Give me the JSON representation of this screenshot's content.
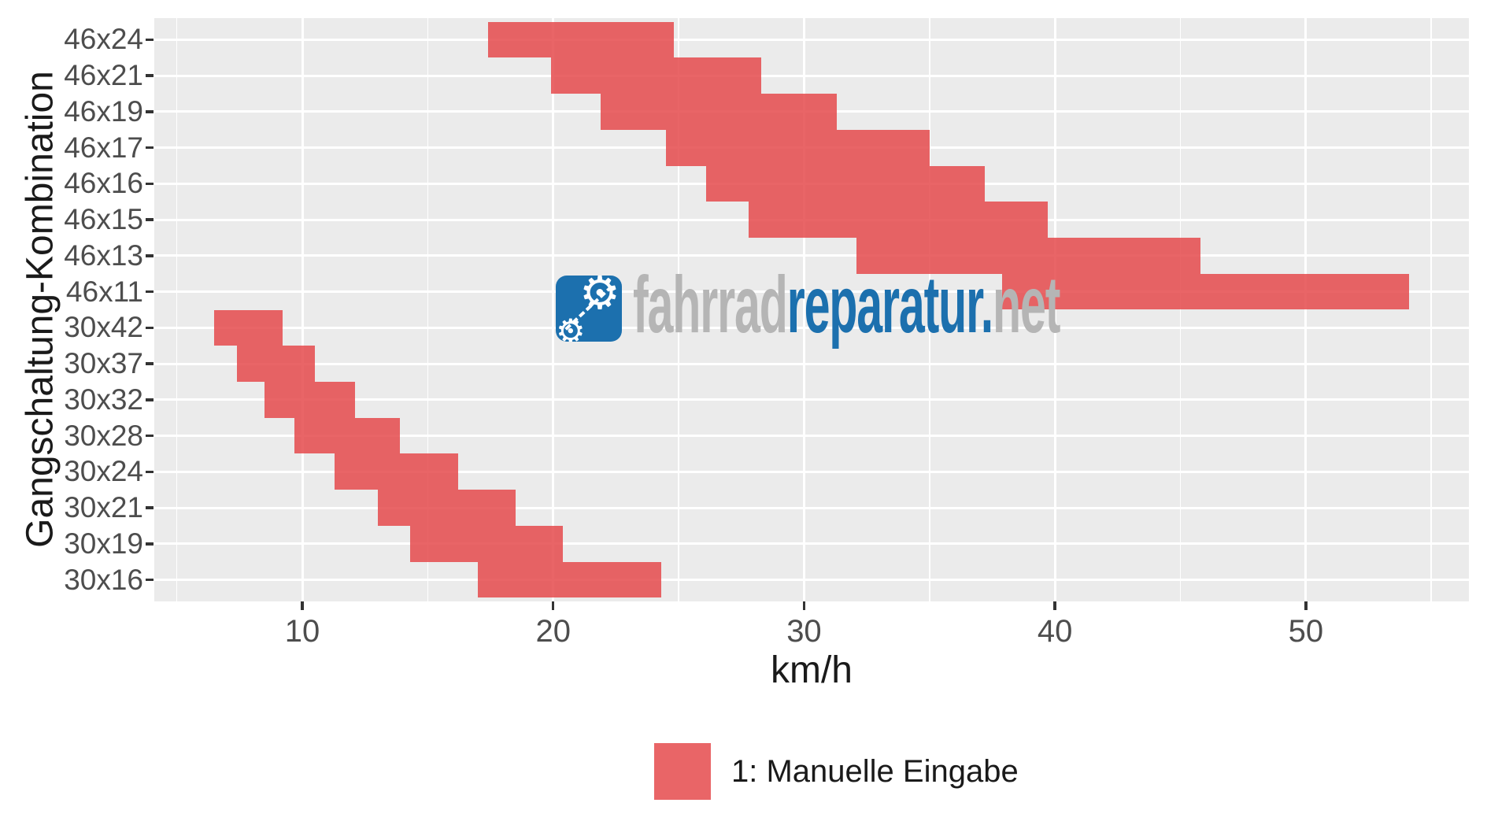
{
  "axes": {
    "x": {
      "title": "km/h",
      "major_ticks": [
        10,
        20,
        30,
        40,
        50
      ],
      "minor_ticks": [
        5,
        15,
        25,
        35,
        45,
        55
      ],
      "limits": [
        4.1,
        56.5
      ]
    },
    "y": {
      "title": "Gangschaltung-Kombination"
    }
  },
  "legend": {
    "label": "1: Manuelle Eingabe"
  },
  "watermark": {
    "icon": "gears-chain-icon",
    "part_grey_1": "fahrrad",
    "part_blue": "reparatur",
    "dot": ".",
    "part_grey_2": "net"
  },
  "colors": {
    "bar_fill": "rgba(229,74,76,0.85)",
    "panel_background": "#EBEBEB",
    "gridline": "#FFFFFF",
    "tick_label": "#4D4D4D",
    "axis_title": "#1A1A1A",
    "tick_mark": "#333333",
    "logo_blue": "#1C70AE",
    "logo_grey": "#B5B5B5"
  },
  "chart_data": {
    "type": "bar",
    "subtype": "horizontal-range-tiles",
    "title": "",
    "xlabel": "km/h",
    "ylabel": "Gangschaltung-Kombination",
    "xlim": [
      4.1,
      56.5
    ],
    "x_major_ticks": [
      10,
      20,
      30,
      40,
      50
    ],
    "x_minor_ticks": [
      5,
      15,
      25,
      35,
      45,
      55
    ],
    "grid": "white major+minor verticals and major horizontals on grey panel",
    "legend_position": "bottom-center",
    "categories": [
      "46x24",
      "46x21",
      "46x19",
      "46x17",
      "46x16",
      "46x15",
      "46x13",
      "46x11",
      "30x42",
      "30x37",
      "30x32",
      "30x28",
      "30x24",
      "30x21",
      "30x19",
      "30x16"
    ],
    "series": [
      {
        "name": "1: Manuelle Eingabe",
        "unit": "km/h",
        "ranges": [
          [
            17.4,
            24.8
          ],
          [
            19.9,
            28.3
          ],
          [
            21.9,
            31.3
          ],
          [
            24.5,
            35.0
          ],
          [
            26.1,
            37.2
          ],
          [
            27.8,
            39.7
          ],
          [
            32.1,
            45.8
          ],
          [
            37.9,
            54.1
          ],
          [
            6.5,
            9.2
          ],
          [
            7.4,
            10.5
          ],
          [
            8.5,
            12.1
          ],
          [
            9.7,
            13.9
          ],
          [
            11.3,
            16.2
          ],
          [
            13.0,
            18.5
          ],
          [
            14.3,
            20.4
          ],
          [
            17.0,
            24.3
          ]
        ]
      }
    ]
  }
}
